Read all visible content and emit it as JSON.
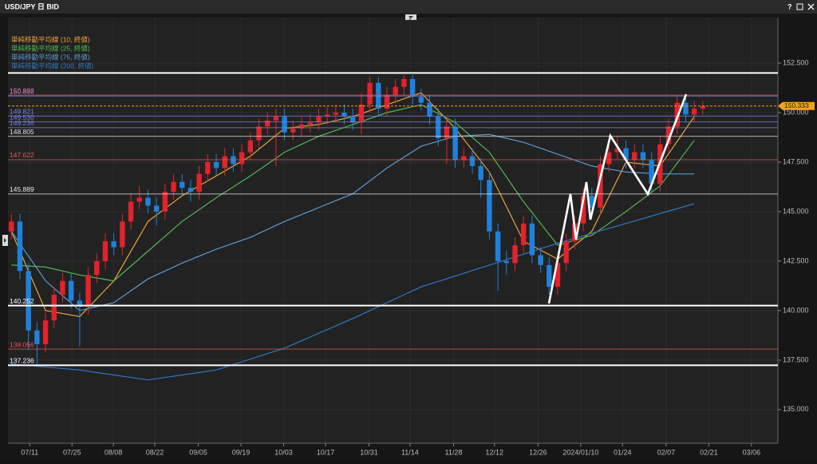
{
  "window": {
    "help": "?"
  },
  "chart_data": {
    "type": "candlestick",
    "title": "USD/JPY 日 BID",
    "open": [
      144.0,
      144.5,
      142.0,
      139.0,
      138.3,
      139.5,
      140.8,
      141.5,
      140.5,
      140.2,
      141.8,
      142.5,
      143.5,
      143.2,
      144.5,
      145.5,
      145.7,
      145.3,
      145.0,
      146.0,
      146.5,
      146.2,
      146.0,
      146.9,
      147.5,
      147.2,
      147.8,
      147.4,
      148.0,
      148.6,
      149.3,
      149.6,
      149.8,
      149.0,
      149.2,
      149.4,
      149.5,
      149.8,
      149.9,
      150.0,
      149.8,
      149.5,
      150.4,
      151.5,
      150.2,
      150.9,
      151.3,
      151.7,
      150.8,
      150.5,
      149.8,
      148.7,
      149.3,
      147.6,
      147.8,
      147.3,
      146.6,
      144.0,
      142.5,
      142.4,
      143.3,
      144.4,
      142.8,
      142.3,
      141.2,
      142.4,
      143.5,
      144.4,
      145.8,
      145.2,
      147.4,
      148.0,
      148.2,
      147.6,
      148.0,
      147.6,
      146.4,
      148.4,
      149.3,
      150.5,
      149.9,
      150.2
    ],
    "high": [
      144.9,
      144.9,
      142.4,
      139.4,
      139.9,
      141.2,
      141.9,
      141.9,
      140.9,
      142.2,
      142.9,
      143.9,
      143.9,
      144.9,
      145.9,
      146.3,
      146.1,
      145.7,
      146.4,
      146.9,
      146.9,
      146.6,
      147.3,
      147.9,
      147.9,
      148.2,
      148.2,
      148.4,
      149.0,
      149.7,
      150.0,
      150.2,
      150.2,
      149.6,
      149.8,
      149.9,
      150.2,
      150.3,
      150.4,
      150.4,
      150.2,
      151.0,
      151.8,
      151.8,
      151.3,
      151.7,
      151.9,
      151.9,
      151.2,
      150.9,
      150.2,
      149.7,
      149.7,
      148.2,
      148.2,
      147.7,
      147.0,
      144.4,
      143.0,
      143.7,
      144.8,
      144.8,
      143.2,
      142.7,
      142.8,
      143.9,
      144.8,
      146.2,
      146.2,
      147.8,
      148.4,
      148.8,
      148.6,
      148.4,
      148.4,
      148.0,
      148.8,
      149.7,
      150.9,
      150.9,
      150.6,
      150.6
    ],
    "low": [
      143.6,
      141.6,
      138.0,
      137.3,
      137.9,
      139.1,
      140.4,
      140.1,
      138.2,
      139.8,
      141.4,
      142.1,
      142.8,
      142.8,
      144.1,
      145.1,
      144.9,
      144.3,
      144.6,
      145.6,
      145.8,
      145.5,
      145.6,
      146.5,
      146.8,
      146.8,
      147.0,
      147.0,
      147.6,
      148.2,
      148.9,
      147.3,
      148.6,
      148.6,
      148.8,
      149.0,
      149.1,
      149.4,
      149.5,
      149.4,
      149.1,
      148.9,
      150.0,
      149.8,
      149.8,
      150.5,
      150.9,
      150.4,
      150.1,
      149.4,
      148.3,
      147.4,
      147.2,
      147.2,
      146.9,
      145.7,
      143.6,
      141.0,
      141.8,
      142.0,
      142.9,
      142.4,
      141.9,
      140.8,
      140.8,
      142.0,
      143.1,
      144.0,
      144.8,
      144.8,
      147.0,
      147.6,
      147.2,
      147.2,
      147.2,
      146.0,
      146.0,
      148.0,
      148.9,
      149.5,
      149.5,
      149.9
    ],
    "close": [
      144.5,
      142.0,
      139.0,
      138.3,
      139.5,
      140.8,
      141.5,
      140.5,
      140.2,
      141.8,
      142.5,
      143.5,
      143.2,
      144.5,
      145.5,
      145.7,
      145.3,
      145.0,
      146.0,
      146.5,
      146.2,
      146.0,
      146.9,
      147.5,
      147.2,
      147.8,
      147.4,
      148.0,
      148.6,
      149.3,
      149.6,
      149.8,
      149.0,
      149.2,
      149.4,
      149.5,
      149.8,
      149.9,
      150.0,
      149.8,
      149.5,
      150.4,
      151.5,
      150.2,
      150.9,
      151.3,
      151.7,
      150.8,
      150.5,
      149.8,
      148.7,
      149.3,
      147.6,
      147.8,
      147.3,
      146.6,
      144.0,
      142.5,
      142.4,
      143.3,
      144.4,
      142.8,
      142.3,
      141.2,
      142.4,
      143.5,
      144.4,
      145.8,
      145.2,
      147.4,
      148.0,
      148.2,
      147.6,
      148.0,
      147.6,
      146.4,
      148.4,
      149.3,
      150.5,
      149.9,
      150.2,
      150.33
    ],
    "up_color": "#e3222c",
    "down_color": "#1e82dc",
    "series": [
      {
        "name": "単純移動平均線 (10, 終値)",
        "color": "#e8a23a",
        "x": [
          0,
          4,
          8,
          12,
          16,
          20,
          24,
          28,
          32,
          36,
          40,
          44,
          48,
          52,
          56,
          60,
          64,
          68,
          72,
          76,
          80
        ],
        "values": [
          144.0,
          140.0,
          139.7,
          141.5,
          144.5,
          145.8,
          146.8,
          147.8,
          149.2,
          149.4,
          149.8,
          150.4,
          151.0,
          149.2,
          147.0,
          143.5,
          142.6,
          144.0,
          147.5,
          147.3,
          149.8
        ]
      },
      {
        "name": "単純移動平均線 (25, 終値)",
        "color": "#52b84e",
        "x": [
          0,
          4,
          8,
          12,
          16,
          20,
          24,
          28,
          32,
          36,
          40,
          44,
          48,
          52,
          56,
          60,
          64,
          68,
          72,
          76,
          80
        ],
        "values": [
          142.3,
          142.2,
          141.8,
          141.5,
          143.0,
          144.5,
          145.7,
          146.8,
          148.0,
          148.8,
          149.4,
          150.0,
          150.4,
          149.5,
          148.0,
          145.5,
          143.3,
          143.8,
          145.0,
          146.3,
          148.6
        ]
      },
      {
        "name": "単純移動平均線 (75, 終値)",
        "color": "#5a9ad2",
        "x": [
          0,
          4,
          8,
          12,
          16,
          20,
          24,
          28,
          32,
          36,
          40,
          44,
          48,
          52,
          56,
          60,
          64,
          68,
          72,
          76,
          80
        ],
        "values": [
          144.0,
          141.5,
          140.0,
          140.4,
          141.6,
          142.4,
          143.1,
          143.7,
          144.5,
          145.2,
          145.9,
          147.2,
          148.3,
          148.8,
          148.9,
          148.5,
          147.9,
          147.3,
          147.0,
          146.9,
          146.9
        ]
      },
      {
        "name": "単純移動平均線 (200, 終値)",
        "color": "#2f78c4",
        "x": [
          0,
          8,
          16,
          24,
          32,
          40,
          48,
          56,
          64,
          72,
          80
        ],
        "values": [
          137.3,
          137.0,
          136.5,
          137.0,
          138.1,
          139.6,
          141.2,
          142.3,
          143.4,
          144.4,
          145.4
        ]
      }
    ],
    "levels": [
      {
        "value": 152.0,
        "label": null,
        "color": "#ffffff",
        "style": "thick"
      },
      {
        "value": 150.882,
        "label": "150.882",
        "color": "#e05a5a",
        "style": "thin"
      },
      {
        "value": 150.838,
        "label": "150.838",
        "color": "#8c7ed8",
        "style": "thin"
      },
      {
        "value": 149.821,
        "label": "149.821",
        "color": "#7a82e6",
        "style": "thin"
      },
      {
        "value": 149.53,
        "label": "149.530",
        "color": "#7a82e6",
        "style": "thin"
      },
      {
        "value": 149.236,
        "label": "149.236",
        "color": "#7a82e6",
        "style": "thin"
      },
      {
        "value": 148.805,
        "label": "148.805",
        "color": "#e0e0e0",
        "style": "thin"
      },
      {
        "value": 147.622,
        "label": "147.622",
        "color": "#e05a5a",
        "style": "thin"
      },
      {
        "value": 145.889,
        "label": "145.889",
        "color": "#e8e8e8",
        "style": "thin"
      },
      {
        "value": 140.252,
        "label": "140.252",
        "color": "#ffffff",
        "style": "thick"
      },
      {
        "value": 138.056,
        "label": "138.056",
        "color": "#e05a5a",
        "style": "thin"
      },
      {
        "value": 137.236,
        "label": "137.236",
        "color": "#ffffff",
        "style": "thick"
      }
    ],
    "last_price": {
      "value": 150.333,
      "label": "150.333",
      "color": "#f0a21e"
    },
    "ylim": [
      133.3,
      154.8
    ],
    "yticks": [
      {
        "value": 135,
        "label": "135.000"
      },
      {
        "value": 137.5,
        "label": "137.500"
      },
      {
        "value": 140,
        "label": "140.000"
      },
      {
        "value": 142.5,
        "label": "142.500"
      },
      {
        "value": 145,
        "label": "145.000"
      },
      {
        "value": 147.5,
        "label": "147.500"
      },
      {
        "value": 150,
        "label": "150.000"
      },
      {
        "value": 152.5,
        "label": "152.500"
      }
    ],
    "xlim": [
      -0.4,
      89.8
    ],
    "xticks": [
      {
        "value": 2.15,
        "label": "07/11"
      },
      {
        "value": 7.1,
        "label": "07/25"
      },
      {
        "value": 11.95,
        "label": "08/08"
      },
      {
        "value": 16.8,
        "label": "08/22"
      },
      {
        "value": 21.9,
        "label": "09/05"
      },
      {
        "value": 26.9,
        "label": "09/19"
      },
      {
        "value": 31.9,
        "label": "10/03"
      },
      {
        "value": 36.8,
        "label": "10/17"
      },
      {
        "value": 41.9,
        "label": "10/31"
      },
      {
        "value": 46.7,
        "label": "11/14"
      },
      {
        "value": 51.8,
        "label": "11/28"
      },
      {
        "value": 56.6,
        "label": "12/12"
      },
      {
        "value": 61.7,
        "label": "12/26"
      },
      {
        "value": 66.7,
        "label": "2024/01/10"
      },
      {
        "value": 71.6,
        "label": "01/24"
      },
      {
        "value": 76.7,
        "label": "02/07"
      },
      {
        "value": 81.7,
        "label": "02/21"
      },
      {
        "value": 86.7,
        "label": "03/06"
      }
    ],
    "grid": true
  }
}
